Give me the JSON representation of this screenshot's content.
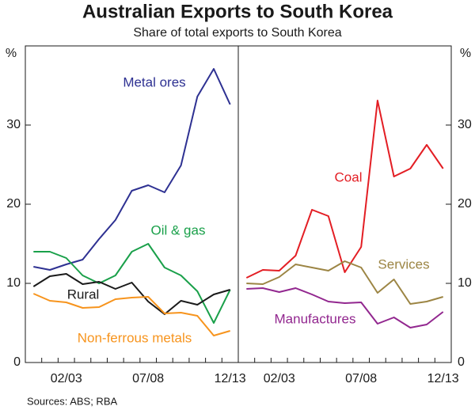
{
  "title": "Australian Exports to South Korea",
  "subtitle": "Share of total exports to South Korea",
  "source": "Sources: ABS; RBA",
  "chart_data": [
    {
      "type": "line",
      "y_unit": "%",
      "categories": [
        null,
        null,
        "02/03",
        null,
        null,
        null,
        null,
        "07/08",
        null,
        null,
        null,
        null,
        "12/13"
      ],
      "ylim": [
        0,
        40
      ],
      "yticks": [
        0,
        10,
        20,
        30
      ],
      "series": [
        {
          "name": "Metal ores",
          "color": "#2e3192",
          "values": [
            12.1,
            11.7,
            12.4,
            13,
            15.6,
            18,
            21.7,
            22.4,
            21.5,
            24.9,
            33.6,
            37.1,
            32.6
          ]
        },
        {
          "name": "Oil & gas",
          "color": "#1aa04a",
          "values": [
            14,
            14,
            13.2,
            11,
            10,
            11,
            14,
            15,
            12,
            11,
            9,
            5,
            9.2
          ]
        },
        {
          "name": "Rural",
          "color": "#1a1a1a",
          "values": [
            9.6,
            10.9,
            11.2,
            9.9,
            10.2,
            9.3,
            10.1,
            7.7,
            6.1,
            7.8,
            7.3,
            8.6,
            9.2
          ]
        },
        {
          "name": "Non-ferrous metals",
          "color": "#f7941d",
          "values": [
            8.7,
            7.8,
            7.6,
            6.9,
            7,
            8,
            8.2,
            8.3,
            6.2,
            6.3,
            5.9,
            3.4,
            4.0
          ]
        }
      ]
    },
    {
      "type": "line",
      "y_unit": "%",
      "categories": [
        null,
        null,
        "02/03",
        null,
        null,
        null,
        null,
        "07/08",
        null,
        null,
        null,
        null,
        "12/13"
      ],
      "ylim": [
        0,
        40
      ],
      "yticks": [
        0,
        10,
        20,
        30
      ],
      "series": [
        {
          "name": "Coal",
          "color": "#e31e24",
          "values": [
            10.7,
            11.7,
            11.6,
            13.5,
            19.3,
            18.5,
            11.4,
            14.6,
            33.1,
            23.5,
            24.5,
            27.5,
            24.5
          ]
        },
        {
          "name": "Services",
          "color": "#9c8544",
          "values": [
            10,
            9.9,
            10.8,
            12.4,
            12,
            11.6,
            12.8,
            12,
            8.8,
            10.5,
            7.4,
            7.7,
            8.3
          ]
        },
        {
          "name": "Manufactures",
          "color": "#92278f",
          "values": [
            9.3,
            9.4,
            8.9,
            9.4,
            8.6,
            7.7,
            7.5,
            7.6,
            4.9,
            5.7,
            4.4,
            4.8,
            6.4
          ]
        }
      ]
    }
  ]
}
